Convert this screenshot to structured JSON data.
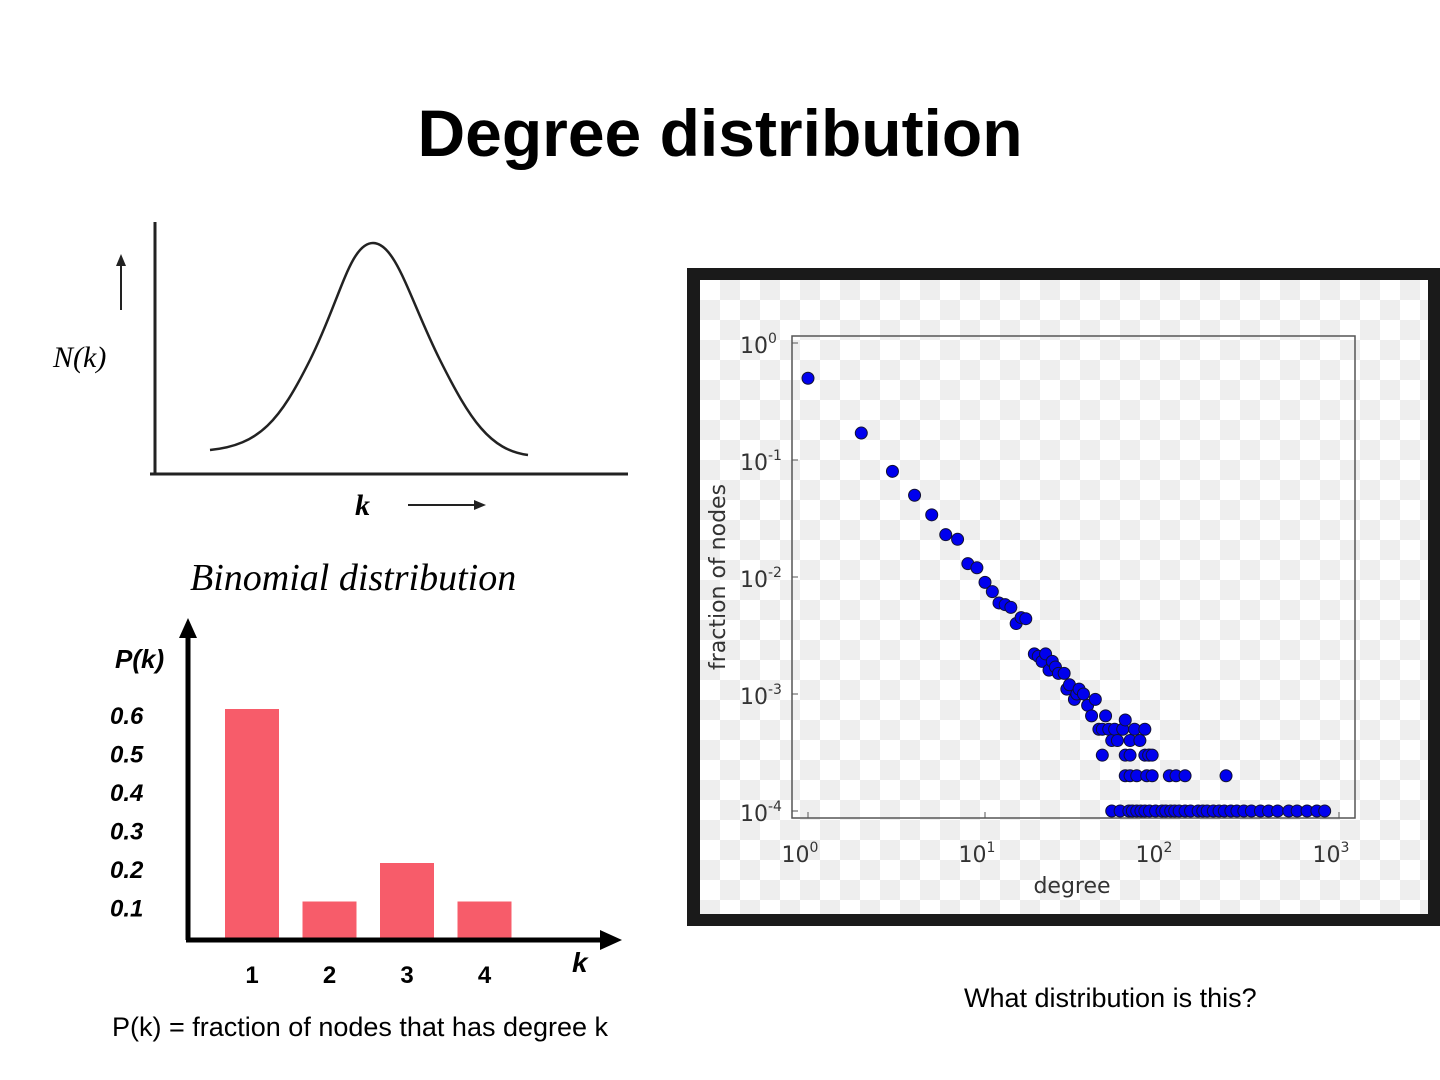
{
  "slide": {
    "title": "Degree distribution",
    "question": "What distribution is this?",
    "definition": "P(k) = fraction of nodes that has degree k"
  },
  "binomial_figure": {
    "ylabel": "N(k)",
    "xlabel": "k",
    "caption": "Binomial distribution"
  },
  "colors": {
    "bar": "#f75c6a",
    "point": "#0000ee"
  },
  "chart_data": [
    {
      "type": "bar",
      "title": "",
      "xlabel": "k",
      "ylabel": "P(k)",
      "categories": [
        "1",
        "2",
        "3",
        "4"
      ],
      "values": [
        0.6,
        0.1,
        0.2,
        0.1
      ],
      "yticks": [
        "0.1",
        "0.2",
        "0.3",
        "0.4",
        "0.5",
        "0.6"
      ],
      "ylim": [
        0,
        0.7
      ]
    },
    {
      "type": "scatter",
      "title": "",
      "xlabel": "degree",
      "ylabel": "fraction of nodes",
      "xscale": "log",
      "yscale": "log",
      "xlim": [
        1,
        1000
      ],
      "ylim": [
        0.0001,
        1
      ],
      "xticks": [
        {
          "base": "10",
          "exp": "0"
        },
        {
          "base": "10",
          "exp": "1"
        },
        {
          "base": "10",
          "exp": "2"
        },
        {
          "base": "10",
          "exp": "3"
        }
      ],
      "yticks": [
        {
          "base": "10",
          "exp": "0"
        },
        {
          "base": "10",
          "exp": "-1"
        },
        {
          "base": "10",
          "exp": "-2"
        },
        {
          "base": "10",
          "exp": "-3"
        },
        {
          "base": "10",
          "exp": "-4"
        }
      ],
      "points": [
        [
          1,
          0.5
        ],
        [
          2,
          0.17
        ],
        [
          3,
          0.08
        ],
        [
          4,
          0.05
        ],
        [
          5,
          0.034
        ],
        [
          6,
          0.023
        ],
        [
          7,
          0.021
        ],
        [
          8,
          0.013
        ],
        [
          9,
          0.012
        ],
        [
          10,
          0.009
        ],
        [
          11,
          0.0075
        ],
        [
          12,
          0.006
        ],
        [
          13,
          0.0058
        ],
        [
          14,
          0.0055
        ],
        [
          15,
          0.004
        ],
        [
          16,
          0.0045
        ],
        [
          17,
          0.0044
        ],
        [
          19,
          0.0022
        ],
        [
          20,
          0.0021
        ],
        [
          21,
          0.0019
        ],
        [
          22,
          0.0022
        ],
        [
          23,
          0.0016
        ],
        [
          24,
          0.0019
        ],
        [
          25,
          0.0017
        ],
        [
          26,
          0.0015
        ],
        [
          28,
          0.0015
        ],
        [
          29,
          0.0011
        ],
        [
          30,
          0.0012
        ],
        [
          32,
          0.0009
        ],
        [
          33,
          0.001
        ],
        [
          34,
          0.0011
        ],
        [
          36,
          0.001
        ],
        [
          38,
          0.0008
        ],
        [
          40,
          0.00065
        ],
        [
          42,
          0.0009
        ],
        [
          44,
          0.0005
        ],
        [
          46,
          0.0005
        ],
        [
          48,
          0.00065
        ],
        [
          50,
          0.0005
        ],
        [
          52,
          0.0004
        ],
        [
          54,
          0.0005
        ],
        [
          56,
          0.0004
        ],
        [
          60,
          0.0005
        ],
        [
          62,
          0.0006
        ],
        [
          66,
          0.0004
        ],
        [
          70,
          0.0005
        ],
        [
          75,
          0.0004
        ],
        [
          80,
          0.0005
        ],
        [
          85,
          0.0003
        ],
        [
          46,
          0.0003
        ],
        [
          62,
          0.0003
        ],
        [
          66,
          0.0003
        ],
        [
          80,
          0.0003
        ],
        [
          84,
          0.0003
        ],
        [
          88,
          0.0003
        ],
        [
          62,
          0.0002
        ],
        [
          66,
          0.0002
        ],
        [
          72,
          0.0002
        ],
        [
          82,
          0.0002
        ],
        [
          88,
          0.0002
        ],
        [
          110,
          0.0002
        ],
        [
          120,
          0.0002
        ],
        [
          135,
          0.0002
        ],
        [
          230,
          0.0002
        ],
        [
          52,
          0.0001
        ],
        [
          58,
          0.0001
        ],
        [
          65,
          0.0001
        ],
        [
          68,
          0.0001
        ],
        [
          72,
          0.0001
        ],
        [
          76,
          0.0001
        ],
        [
          80,
          0.0001
        ],
        [
          85,
          0.0001
        ],
        [
          92,
          0.0001
        ],
        [
          100,
          0.0001
        ],
        [
          105,
          0.0001
        ],
        [
          112,
          0.0001
        ],
        [
          118,
          0.0001
        ],
        [
          125,
          0.0001
        ],
        [
          135,
          0.0001
        ],
        [
          145,
          0.0001
        ],
        [
          160,
          0.0001
        ],
        [
          170,
          0.0001
        ],
        [
          180,
          0.0001
        ],
        [
          195,
          0.0001
        ],
        [
          210,
          0.0001
        ],
        [
          225,
          0.0001
        ],
        [
          245,
          0.0001
        ],
        [
          265,
          0.0001
        ],
        [
          290,
          0.0001
        ],
        [
          320,
          0.0001
        ],
        [
          360,
          0.0001
        ],
        [
          400,
          0.0001
        ],
        [
          450,
          0.0001
        ],
        [
          520,
          0.0001
        ],
        [
          580,
          0.0001
        ],
        [
          660,
          0.0001
        ],
        [
          750,
          0.0001
        ],
        [
          830,
          0.0001
        ]
      ]
    }
  ]
}
